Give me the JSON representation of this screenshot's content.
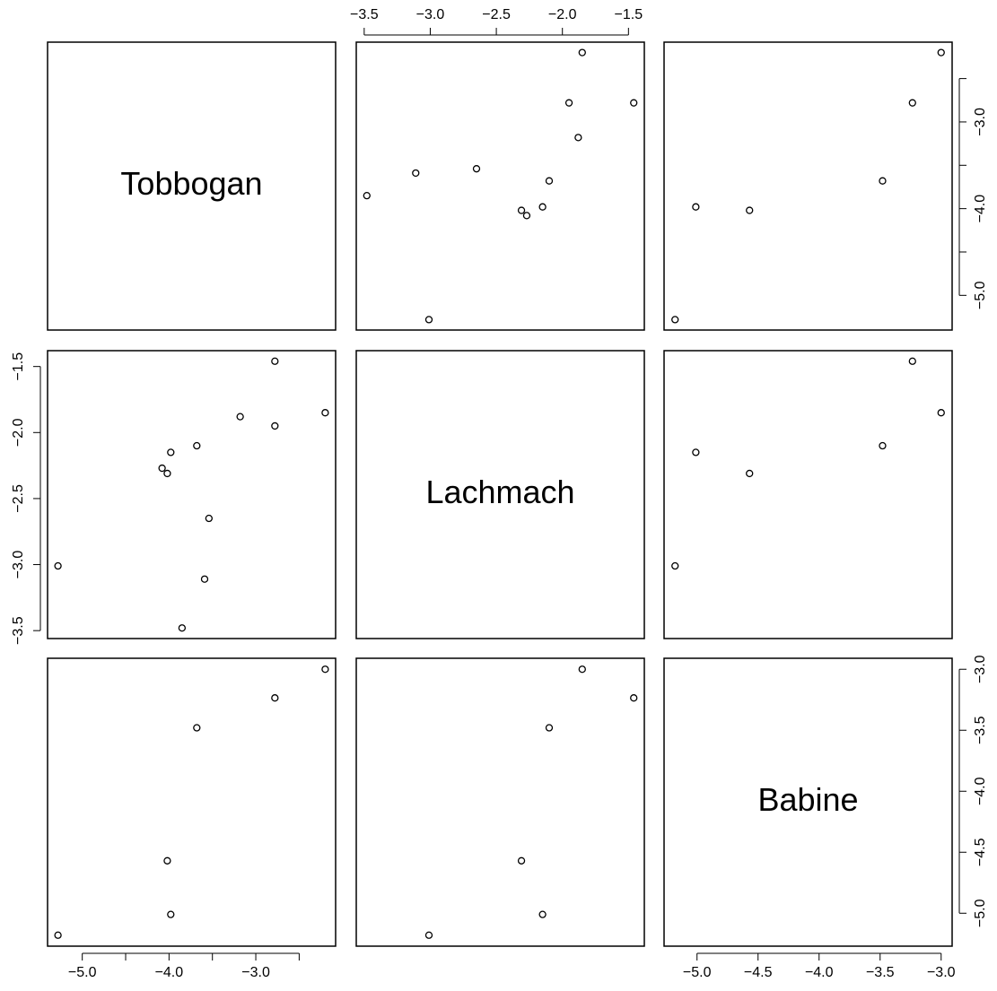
{
  "chart_data": {
    "type": "scatter_matrix",
    "variables": [
      {
        "name": "Tobbogan",
        "values": [
          -2.78,
          -2.2,
          -2.78,
          -3.18,
          -3.68,
          -3.98,
          -4.08,
          -4.02,
          -3.54,
          -3.59,
          -5.28,
          -3.85
        ],
        "lim": [
          -5.4,
          -2.08
        ],
        "ticks": [
          {
            "value": -5.0,
            "label": "−5.0"
          },
          {
            "value": -4.5,
            "label": null
          },
          {
            "value": -4.0,
            "label": "−4.0"
          },
          {
            "value": -3.5,
            "label": null
          },
          {
            "value": -3.0,
            "label": "−3.0"
          },
          {
            "value": -2.5,
            "label": null
          }
        ]
      },
      {
        "name": "Lachmach",
        "values": [
          -1.46,
          -1.85,
          -1.95,
          -1.88,
          -2.1,
          -2.15,
          -2.27,
          -2.31,
          -2.65,
          -3.11,
          -3.01,
          -3.48
        ],
        "lim": [
          -3.56,
          -1.38
        ],
        "ticks": [
          {
            "value": -3.5,
            "label": "−3.5"
          },
          {
            "value": -3.0,
            "label": "−3.0"
          },
          {
            "value": -2.5,
            "label": "−2.5"
          },
          {
            "value": -2.0,
            "label": "−2.0"
          },
          {
            "value": -1.5,
            "label": "−1.5"
          }
        ]
      },
      {
        "name": "Babine",
        "values": [
          -3.235,
          -3.0,
          null,
          null,
          -3.48,
          -5.01,
          null,
          -4.57,
          null,
          null,
          -5.18,
          null
        ],
        "lim": [
          -5.27,
          -2.91
        ],
        "ticks": [
          {
            "value": -5.0,
            "label": "−5.0"
          },
          {
            "value": -4.5,
            "label": "−4.5"
          },
          {
            "value": -4.0,
            "label": "−4.0"
          },
          {
            "value": -3.5,
            "label": "−3.5"
          },
          {
            "value": -3.0,
            "label": "−3.0"
          }
        ]
      }
    ]
  }
}
